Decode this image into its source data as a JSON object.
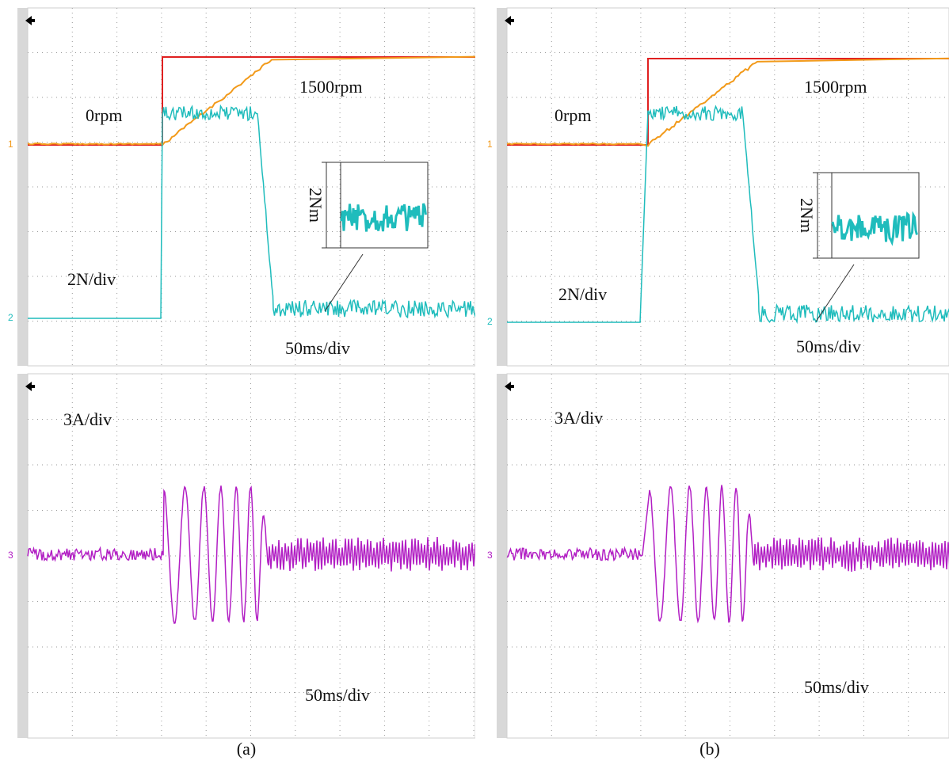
{
  "panels": [
    {
      "caption": "(a)",
      "torque": {
        "speed_start": "0rpm",
        "speed_end": "1500rpm",
        "torque_scale": "2N/div",
        "time_scale": "50ms/div",
        "inset_label": "2Nm",
        "channels": [
          "1",
          "2"
        ]
      },
      "current": {
        "current_scale": "3A/div",
        "time_scale": "50ms/div",
        "channel": "3"
      }
    },
    {
      "caption": "(b)",
      "torque": {
        "speed_start": "0rpm",
        "speed_end": "1500rpm",
        "torque_scale": "2N/div",
        "time_scale": "50ms/div",
        "inset_label": "2Nm",
        "channels": [
          "1",
          "2"
        ]
      },
      "current": {
        "current_scale": "3A/div",
        "time_scale": "50ms/div",
        "channel": "3"
      }
    }
  ]
}
